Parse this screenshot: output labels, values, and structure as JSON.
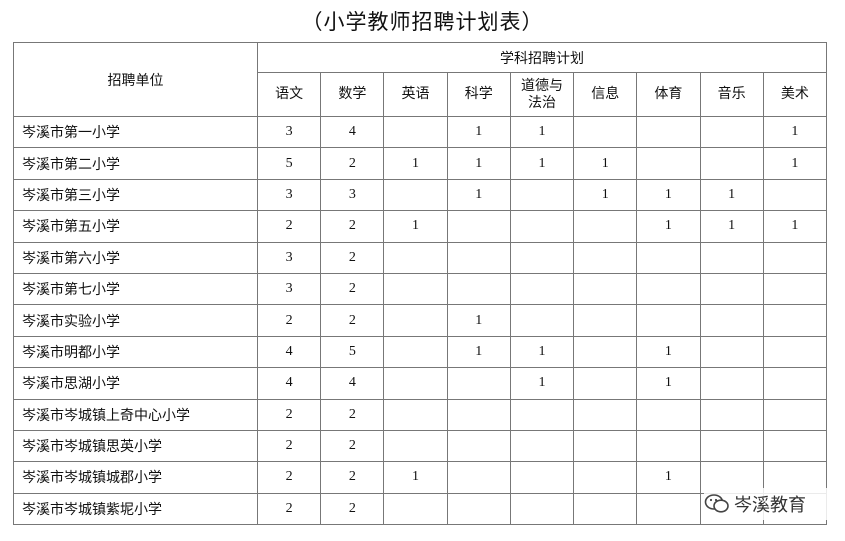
{
  "header": {
    "title": "（小学教师招聘计划表）"
  },
  "table": {
    "unit_header": "招聘单位",
    "group_header": "学科招聘计划",
    "subjects": [
      "语文",
      "数学",
      "英语",
      "科学",
      "道德与法治",
      "信息",
      "体育",
      "音乐",
      "美术"
    ],
    "rows": [
      [
        "岑溪市第一小学",
        3,
        4,
        null,
        1,
        1,
        null,
        null,
        null,
        1
      ],
      [
        "岑溪市第二小学",
        5,
        2,
        1,
        1,
        1,
        1,
        null,
        null,
        1
      ],
      [
        "岑溪市第三小学",
        3,
        3,
        null,
        1,
        null,
        1,
        1,
        1,
        null
      ],
      [
        "岑溪市第五小学",
        2,
        2,
        1,
        null,
        null,
        null,
        1,
        1,
        1
      ],
      [
        "岑溪市第六小学",
        3,
        2,
        null,
        null,
        null,
        null,
        null,
        null,
        null
      ],
      [
        "岑溪市第七小学",
        3,
        2,
        null,
        null,
        null,
        null,
        null,
        null,
        null
      ],
      [
        "岑溪市实验小学",
        2,
        2,
        null,
        1,
        null,
        null,
        null,
        null,
        null
      ],
      [
        "岑溪市明都小学",
        4,
        5,
        null,
        1,
        1,
        null,
        1,
        null,
        null
      ],
      [
        "岑溪市思湖小学",
        4,
        4,
        null,
        null,
        1,
        null,
        1,
        null,
        null
      ],
      [
        "岑溪市岑城镇上奇中心小学",
        2,
        2,
        null,
        null,
        null,
        null,
        null,
        null,
        null
      ],
      [
        "岑溪市岑城镇思英小学",
        2,
        2,
        null,
        null,
        null,
        null,
        null,
        null,
        null
      ],
      [
        "岑溪市岑城镇城郡小学",
        2,
        2,
        1,
        null,
        null,
        null,
        1,
        null,
        null
      ],
      [
        "岑溪市岑城镇紫坭小学",
        2,
        2,
        null,
        null,
        null,
        null,
        null,
        null,
        null
      ]
    ]
  },
  "watermark": "岑溪教育"
}
